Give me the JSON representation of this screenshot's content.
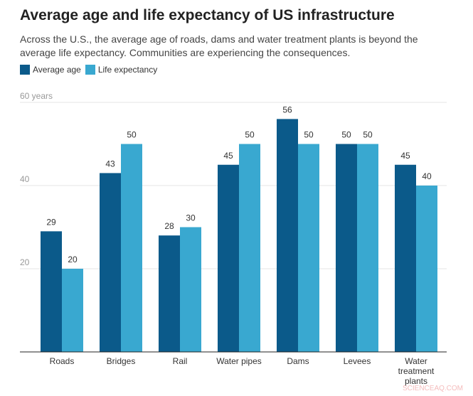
{
  "chart_data": {
    "type": "bar",
    "title": "Average age and life expectancy of US infrastructure",
    "subtitle": "Across the U.S., the average age of roads, dams and water treatment plants is beyond the average life expectancy. Communities are experiencing the consequences.",
    "categories": [
      "Roads",
      "Bridges",
      "Rail",
      "Water pipes",
      "Dams",
      "Levees",
      "Water treatment plants"
    ],
    "series": [
      {
        "name": "Average age",
        "color": "#0b5a8a",
        "values": [
          29,
          43,
          28,
          45,
          56,
          50,
          45
        ]
      },
      {
        "name": "Life expectancy",
        "color": "#39a8d0",
        "values": [
          20,
          50,
          30,
          50,
          50,
          50,
          40
        ]
      }
    ],
    "yticks": [
      {
        "value": 20,
        "label": "20"
      },
      {
        "value": 40,
        "label": "40"
      },
      {
        "value": 60,
        "label": "60 years"
      }
    ],
    "ylim": [
      0,
      60
    ],
    "grid": true,
    "legend": "top-left"
  },
  "watermark": "SCIENCEAQ.COM"
}
